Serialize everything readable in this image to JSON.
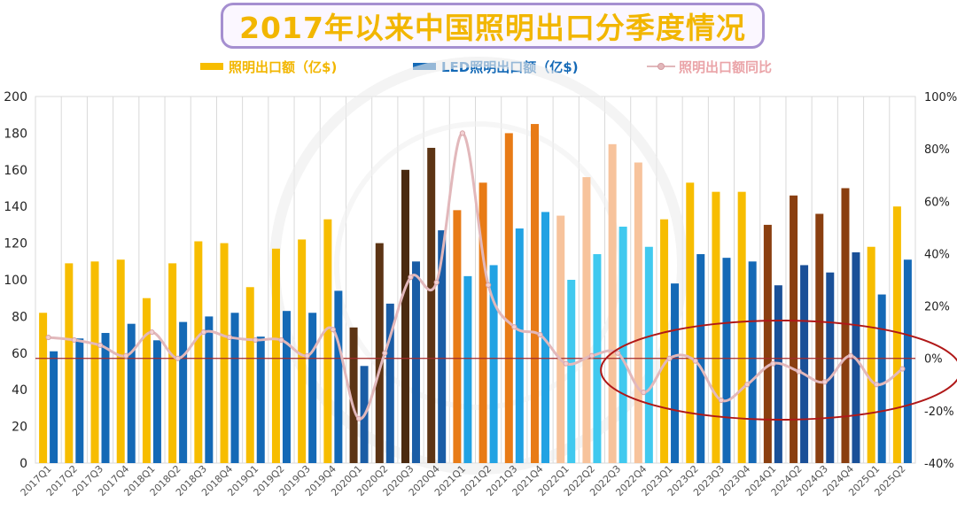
{
  "colors": {
    "lighting_bar_2017_2019": "#f7bd00",
    "led_bar_2017_2019": "#1469b6",
    "lighting_bar_2020": [
      "#5c3414",
      "#5c3414",
      "#4a2a10",
      "#5c3414"
    ],
    "led_bar_2020": "#1a5da6",
    "lighting_bar_2021": "#e87b16",
    "led_bar_2021": "#22a2e3",
    "lighting_bar_2022": "#f7c39c",
    "led_bar_2022": "#40c9ef",
    "lighting_bar_2023": "#f7bd00",
    "led_bar_2023": "#1469b6",
    "lighting_bar_2024": "#8a3f10",
    "led_bar_2024": "#1a5098",
    "lighting_bar_2025": "#f7bd00",
    "led_bar_2025": "#1469b6",
    "yoy_line": "#e2b8bb",
    "zero_line": "#a52a2a",
    "ellipse": "#b01818"
  },
  "chart_data": {
    "type": "bar",
    "title": "2017年以来中国照明出口分季度情况",
    "categories": [
      "2017Q1",
      "2017Q2",
      "2017Q3",
      "2017Q4",
      "2018Q1",
      "2018Q2",
      "2018Q3",
      "2018Q4",
      "2019Q1",
      "2019Q2",
      "2019Q3",
      "2019Q4",
      "2020Q1",
      "2020Q2",
      "2020Q3",
      "2020Q4",
      "2021Q1",
      "2021Q2",
      "2021Q3",
      "2021Q4",
      "2022Q1",
      "2022Q2",
      "2022Q3",
      "2022Q4",
      "2023Q1",
      "2023Q2",
      "2023Q3",
      "2023Q4",
      "2024Q1",
      "2024Q2",
      "2024Q3",
      "2024Q4",
      "2025Q1",
      "2025Q2"
    ],
    "series": [
      {
        "name": "照明出口额（亿$)",
        "axis": "left",
        "values": [
          82,
          109,
          110,
          111,
          90,
          109,
          121,
          120,
          96,
          117,
          122,
          133,
          74,
          120,
          160,
          172,
          138,
          153,
          180,
          185,
          135,
          156,
          174,
          164,
          133,
          153,
          148,
          148,
          130,
          146,
          136,
          150,
          118,
          140
        ]
      },
      {
        "name": "LED照明出口额（亿$)",
        "axis": "left",
        "values": [
          61,
          68,
          71,
          76,
          67,
          77,
          80,
          82,
          69,
          83,
          82,
          94,
          53,
          87,
          110,
          127,
          102,
          108,
          128,
          137,
          100,
          114,
          129,
          118,
          98,
          114,
          112,
          110,
          97,
          108,
          104,
          115,
          92,
          111
        ]
      },
      {
        "name": "照明出口额同比",
        "axis": "right",
        "type": "line",
        "unit": "%",
        "values": [
          8,
          7,
          5,
          1,
          10,
          0,
          10,
          8,
          7,
          7,
          1,
          11,
          -23,
          2,
          31,
          29,
          86,
          28,
          12,
          9,
          -2,
          1,
          2,
          -13,
          0,
          -1,
          -16,
          -10,
          -2,
          -5,
          -9,
          1,
          -10,
          -4
        ]
      }
    ],
    "left_axis": {
      "ylim": [
        0,
        200
      ],
      "ticks": [
        "0",
        "20",
        "40",
        "60",
        "80",
        "100",
        "120",
        "140",
        "160",
        "180",
        "200"
      ]
    },
    "right_axis": {
      "ylim": [
        -40,
        100
      ],
      "ticks": [
        "-40%",
        "-20%",
        "0%",
        "20%",
        "40%",
        "60%",
        "80%",
        "100%"
      ]
    },
    "legend_position": "top",
    "grid": "vertical"
  }
}
